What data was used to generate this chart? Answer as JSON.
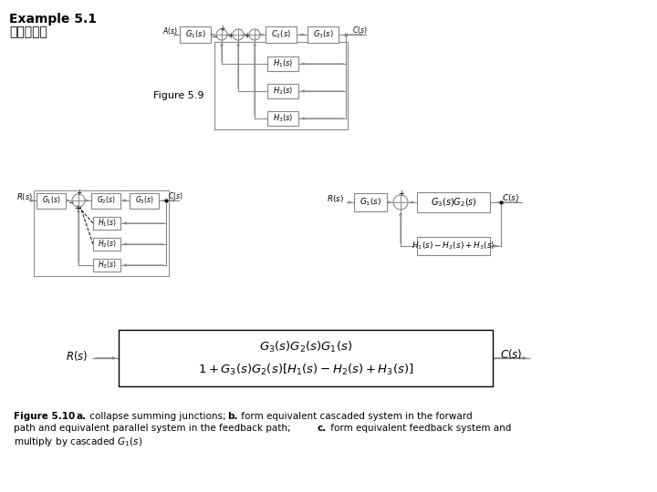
{
  "title_line1": "Example 5.1",
  "title_line2": "方塊圖化簡",
  "fig59_label": "Figure 5.9",
  "bg_color": "#ffffff",
  "box_color": "#000000",
  "line_color": "#555555",
  "text_color": "#000000",
  "gray_color": "#888888"
}
